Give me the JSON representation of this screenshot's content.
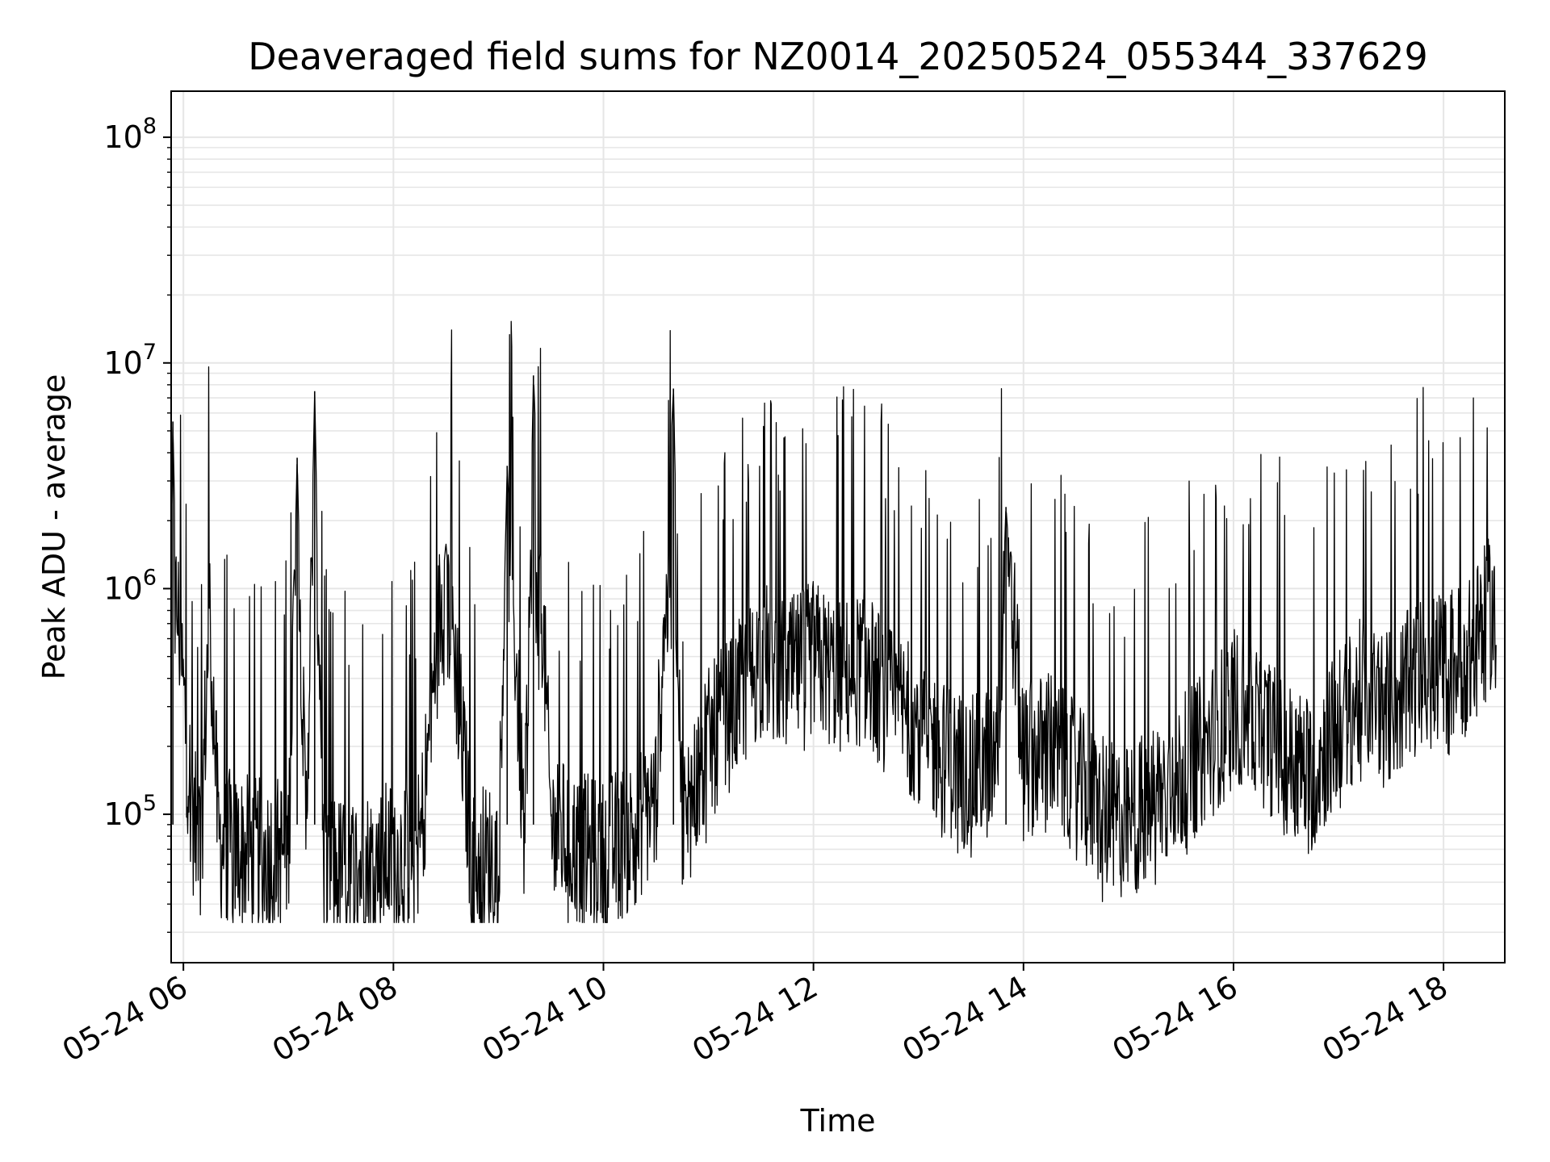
{
  "chart_data": {
    "type": "line",
    "title": "Deaveraged field sums for NZ0014_20250524_055344_337629",
    "xlabel": "Time",
    "ylabel": "Peak ADU - average",
    "yscale": "log",
    "ylim": [
      22000,
      160000000
    ],
    "xlim": [
      "2025-05-24 05:53",
      "2025-05-24 18:35"
    ],
    "grid": true,
    "line_color": "#000000",
    "grid_color": "#e6e6e6",
    "x_ticks": [
      "05-24 06",
      "05-24 08",
      "05-24 10",
      "05-24 12",
      "05-24 14",
      "05-24 16",
      "05-24 18"
    ],
    "y_ticks": [
      {
        "value": 100000,
        "base": "10",
        "exp": "5"
      },
      {
        "value": 1000000,
        "base": "10",
        "exp": "6"
      },
      {
        "value": 10000000,
        "base": "10",
        "exp": "7"
      },
      {
        "value": 100000000,
        "base": "10",
        "exp": "8"
      }
    ],
    "series": [
      {
        "x": [
          "2025-05-24 05:53",
          "2025-05-24 05:54",
          "2025-05-24 05:56",
          "2025-05-24 05:58",
          "2025-05-24 06:02",
          "2025-05-24 06:06",
          "2025-05-24 06:10",
          "2025-05-24 06:15",
          "2025-05-24 06:20",
          "2025-05-24 06:30",
          "2025-05-24 06:45",
          "2025-05-24 07:00",
          "2025-05-24 07:05",
          "2025-05-24 07:10",
          "2025-05-24 07:15",
          "2025-05-24 07:20",
          "2025-05-24 07:30",
          "2025-05-24 07:45",
          "2025-05-24 08:00",
          "2025-05-24 08:15",
          "2025-05-24 08:30",
          "2025-05-24 08:45",
          "2025-05-24 09:00",
          "2025-05-24 09:05",
          "2025-05-24 09:15",
          "2025-05-24 09:20",
          "2025-05-24 09:30",
          "2025-05-24 09:45",
          "2025-05-24 10:00",
          "2025-05-24 10:15",
          "2025-05-24 10:30",
          "2025-05-24 10:40",
          "2025-05-24 10:45",
          "2025-05-24 11:00",
          "2025-05-24 11:15",
          "2025-05-24 11:30",
          "2025-05-24 11:45",
          "2025-05-24 12:00",
          "2025-05-24 12:15",
          "2025-05-24 12:30",
          "2025-05-24 12:45",
          "2025-05-24 13:00",
          "2025-05-24 13:15",
          "2025-05-24 13:30",
          "2025-05-24 13:45",
          "2025-05-24 13:50",
          "2025-05-24 14:00",
          "2025-05-24 14:15",
          "2025-05-24 14:30",
          "2025-05-24 14:45",
          "2025-05-24 15:00",
          "2025-05-24 15:15",
          "2025-05-24 15:30",
          "2025-05-24 15:45",
          "2025-05-24 16:00",
          "2025-05-24 16:15",
          "2025-05-24 16:30",
          "2025-05-24 16:45",
          "2025-05-24 17:00",
          "2025-05-24 17:15",
          "2025-05-24 17:30",
          "2025-05-24 17:45",
          "2025-05-24 18:00",
          "2025-05-24 18:15",
          "2025-05-24 18:30"
        ],
        "y": [
          2000000,
          5500000,
          900000,
          600000,
          200000,
          90000,
          70000,
          900000,
          75000,
          70000,
          65000,
          70000,
          3800000,
          75000,
          7500000,
          65000,
          55000,
          60000,
          65000,
          70000,
          1600000,
          60000,
          65000,
          3500000,
          70000,
          8800000,
          90000,
          70000,
          65000,
          80000,
          120000,
          7700000,
          90000,
          200000,
          300000,
          500000,
          400000,
          500000,
          400000,
          450000,
          300000,
          250000,
          180000,
          150000,
          180000,
          2300000,
          170000,
          200000,
          140000,
          100000,
          90000,
          120000,
          150000,
          200000,
          300000,
          250000,
          180000,
          150000,
          250000,
          350000,
          300000,
          400000,
          450000,
          500000,
          900000
        ]
      }
    ]
  }
}
